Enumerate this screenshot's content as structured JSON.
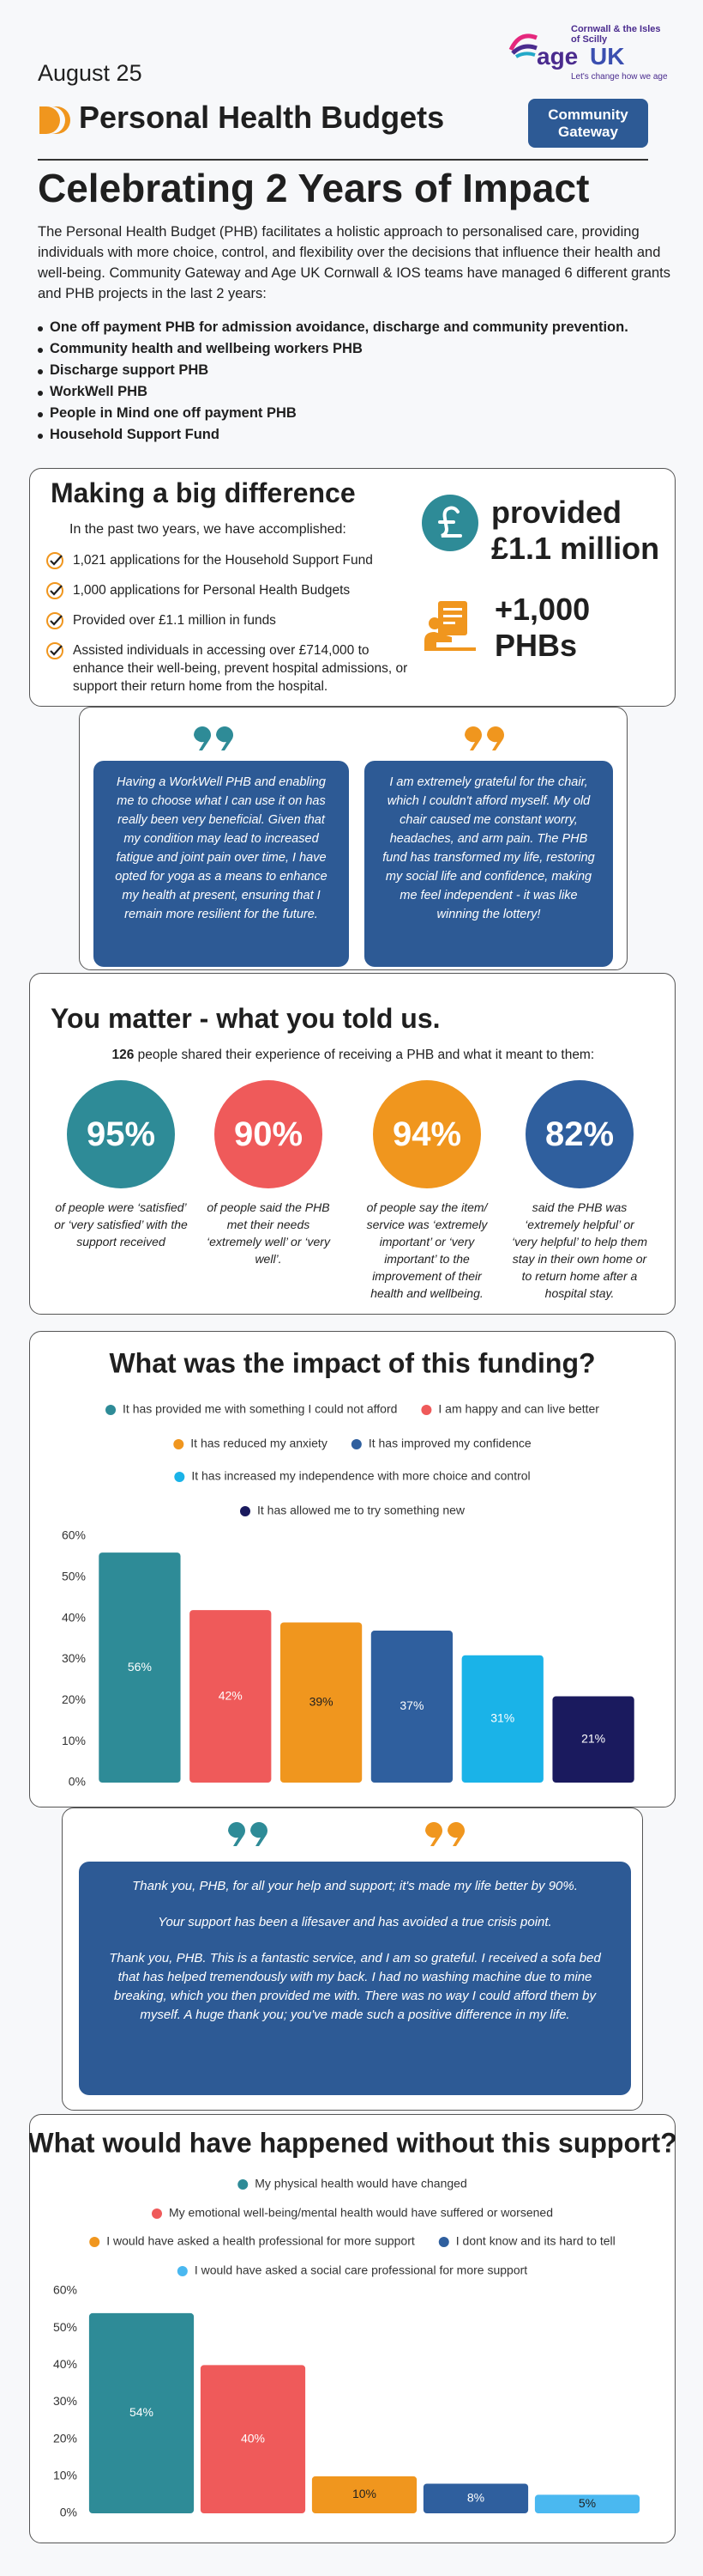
{
  "header": {
    "date": "August 25",
    "title": "Personal Health Budgets",
    "logo": {
      "region": "Cornwall & the Isles of Scilly",
      "brand_age": "age",
      "brand_uk": "UK",
      "tagline": "Let's change how we age"
    },
    "partner": "Community Gateway"
  },
  "intro": {
    "title": "Celebrating 2 Years of Impact",
    "text": "The Personal Health Budget (PHB) facilitates a holistic approach to personalised care, providing individuals with more choice, control, and flexibility over the decisions that influence their health and well-being. Community Gateway and Age UK Cornwall & IOS teams have managed 6 different grants and PHB projects in the last 2 years:",
    "projects": [
      "One off payment PHB for admission avoidance, discharge and community prevention.",
      "Community health and wellbeing workers PHB",
      "Discharge support PHB",
      "WorkWell PHB",
      "People in Mind one off payment PHB",
      "Household Support Fund"
    ]
  },
  "difference": {
    "title": "Making a big difference",
    "lead": "In the past two years, we have accomplished:",
    "items": [
      "1,021 applications for the Household Support Fund",
      "1,000 applications for Personal Health Budgets",
      "Provided over £1.1 million in funds",
      "Assisted individuals in accessing over £714,000 to enhance their well-being, prevent hospital admissions, or support their return home from the hospital."
    ],
    "funds_label": "provided",
    "funds_value": "£1.1 million",
    "phb_value": "+1,000",
    "phb_label": "PHBs"
  },
  "quotes": [
    "Having a WorkWell PHB and enabling me to choose what I can use it on has really been very beneficial. Given that my condition may lead to increased fatigue and joint pain over time, I have opted for yoga as a means to enhance my health at present, ensuring that I remain more resilient for the future.",
    "I am extremely grateful for the chair, which I couldn't afford myself. My old chair caused me constant worry, headaches, and arm pain. The PHB fund has transformed my life, restoring my social life and confidence, making me feel independent  - it was like winning the lottery!"
  ],
  "feedback": {
    "title": "You matter - what you told us.",
    "count": "126",
    "text": " people shared their experience of receiving a PHB and what it meant to them:",
    "stats": [
      {
        "value": "95%",
        "color": "#2e8b97",
        "text": "of people were ‘satisfied’ or ‘very satisfied’ with the support received"
      },
      {
        "value": "90%",
        "color": "#ef5a5a",
        "text": "of people said the PHB met their needs ‘extremely well’ or ‘very well’."
      },
      {
        "value": "94%",
        "color": "#f0961e",
        "text": "of people say the item/ service was ‘extremely important’ or ‘very important’ to the improvement of their health and wellbeing."
      },
      {
        "value": "82%",
        "color": "#2f5f9e",
        "text": "said the PHB was ‘extremely helpful’ or ‘very helpful’ to help them stay in their own home or to return home after a hospital stay."
      }
    ]
  },
  "testimonials": [
    "Thank you, PHB, for all your help and support; it's made my life better by 90%.",
    "Your support has been a lifesaver and has avoided a true crisis point.",
    "Thank you, PHB. This is a fantastic service, and I am so grateful. I received a sofa bed that has helped tremendously with my back. I had no washing machine due to mine breaking, which you then provided me with. There was no way I could afford them by myself. A huge thank you; you've made such a positive difference in my life."
  ],
  "chart_data": [
    {
      "type": "bar",
      "title": "What was the impact of this funding?",
      "categories": [
        "It has provided me with something I could not afford",
        "I am happy and can live better",
        "It has reduced my anxiety",
        "It has improved my confidence",
        "It has increased my independence with more choice and control",
        "It has allowed me to try something new"
      ],
      "values": [
        56,
        42,
        39,
        37,
        31,
        21
      ],
      "value_labels": [
        "56%",
        "42%",
        "39%",
        "37%",
        "31%",
        "21%"
      ],
      "colors": [
        "#2e8b97",
        "#ef5a5a",
        "#f0961e",
        "#2f5f9e",
        "#1ab3e8",
        "#1a1a5e"
      ],
      "ylim": [
        0,
        60
      ],
      "yticks": [
        {
          "value": 0,
          "label": "0%"
        },
        {
          "value": 10,
          "label": "10%"
        },
        {
          "value": 20,
          "label": "20%"
        },
        {
          "value": 30,
          "label": "30%"
        },
        {
          "value": 40,
          "label": "40%"
        },
        {
          "value": 50,
          "label": "50%"
        },
        {
          "value": 60,
          "label": "60%"
        }
      ],
      "grid": false,
      "legend": "top"
    },
    {
      "type": "bar",
      "title": "What would have happened without this support?",
      "categories": [
        "My physical health would have changed",
        "My emotional well-being/mental health would have suffered or worsened",
        "I would have asked a health professional for more support",
        "I dont know and its hard to tell",
        "I would have asked a social care professional for more support"
      ],
      "values": [
        54,
        40,
        10,
        8,
        5
      ],
      "value_labels": [
        "54%",
        "40%",
        "10%",
        "8%",
        "5%"
      ],
      "colors": [
        "#2e8b97",
        "#ef5a5a",
        "#f0961e",
        "#2f5f9e",
        "#4ab8f0"
      ],
      "ylim": [
        0,
        60
      ],
      "yticks": [
        {
          "value": 0,
          "label": "0%"
        },
        {
          "value": 10,
          "label": "10%"
        },
        {
          "value": 20,
          "label": "20%"
        },
        {
          "value": 30,
          "label": "30%"
        },
        {
          "value": 40,
          "label": "40%"
        },
        {
          "value": 50,
          "label": "50%"
        },
        {
          "value": 60,
          "label": "60%"
        }
      ],
      "grid": false,
      "legend": "top"
    }
  ]
}
